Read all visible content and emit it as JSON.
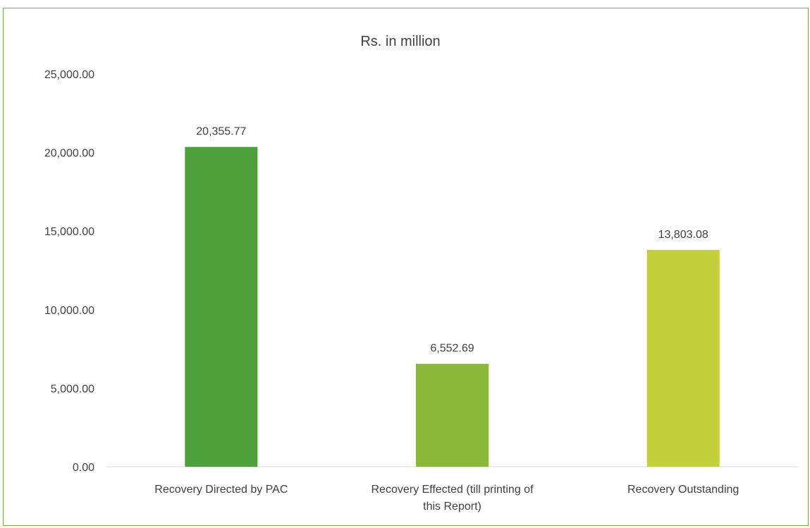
{
  "chart_data": {
    "type": "bar",
    "title": "Rs. in million",
    "categories": [
      [
        "Recovery Directed by PAC"
      ],
      [
        "Recovery Effected (till printing of",
        "this Report)"
      ],
      [
        "Recovery Outstanding"
      ]
    ],
    "values": [
      20355.77,
      6552.69,
      13803.08
    ],
    "value_labels": [
      "20,355.77",
      "6,552.69",
      "13,803.08"
    ],
    "bar_colors": [
      "#4ea03a",
      "#8cb83a",
      "#c2d13a"
    ],
    "ylim": [
      0,
      25000
    ],
    "yticks": [
      "0.00",
      "5,000.00",
      "10,000.00",
      "15,000.00",
      "20,000.00",
      "25,000.00"
    ],
    "grid": false,
    "legend": "none"
  }
}
